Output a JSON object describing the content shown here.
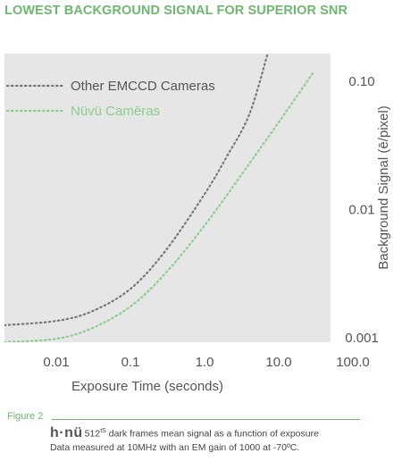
{
  "header": {
    "title": "LOWEST BACKGROUND SIGNAL FOR SUPERIOR SNR"
  },
  "figure": {
    "label": "Figure 2",
    "logo": "h·nü",
    "caption_model": "512",
    "caption_superscript": "tS",
    "caption_line1_rest": " dark frames mean signal as a function of exposure",
    "caption_line2": "Data measured at 10MHz with an EM gain of 1000 at -70ºC."
  },
  "colors": {
    "plot_background": "#e6e6e6",
    "other_series": "#777777",
    "nuvu_series": "#8ccc8c",
    "title_green": "#6db86e",
    "text_gray": "#555555"
  },
  "chart_data": {
    "type": "line",
    "xlabel": "Exposure Time (seconds)",
    "ylabel": "Background Signal (ē/pixel)",
    "x_scale": "log",
    "y_scale": "log",
    "xlim": [
      0.002,
      50
    ],
    "ylim": [
      0.00092,
      0.165
    ],
    "x_ticks": [
      {
        "value": 0.01,
        "label": "0.01"
      },
      {
        "value": 0.1,
        "label": "0.1"
      },
      {
        "value": 1,
        "label": "1.0"
      },
      {
        "value": 10,
        "label": "10.0"
      },
      {
        "value": 100,
        "label": "100.0"
      }
    ],
    "y_ticks": [
      {
        "value": 0.1,
        "label": "0.10"
      },
      {
        "value": 0.01,
        "label": "0.01"
      },
      {
        "value": 0.001,
        "label": "0.001"
      }
    ],
    "grid": false,
    "legend_position": "top-left",
    "series": [
      {
        "name": "Other EMCCD Cameras",
        "style": "dotted",
        "x": [
          0.002,
          0.01,
          0.03,
          0.1,
          0.3,
          1,
          2,
          4,
          7
        ],
        "y": [
          0.00125,
          0.00135,
          0.0016,
          0.0024,
          0.0048,
          0.0132,
          0.026,
          0.055,
          0.16
        ]
      },
      {
        "name": "Nüvü Camēras",
        "style": "dotted",
        "x": [
          0.002,
          0.01,
          0.03,
          0.1,
          0.3,
          1,
          3,
          10,
          30
        ],
        "y": [
          0.00092,
          0.00098,
          0.00118,
          0.00175,
          0.0032,
          0.0075,
          0.018,
          0.048,
          0.12
        ]
      }
    ]
  }
}
